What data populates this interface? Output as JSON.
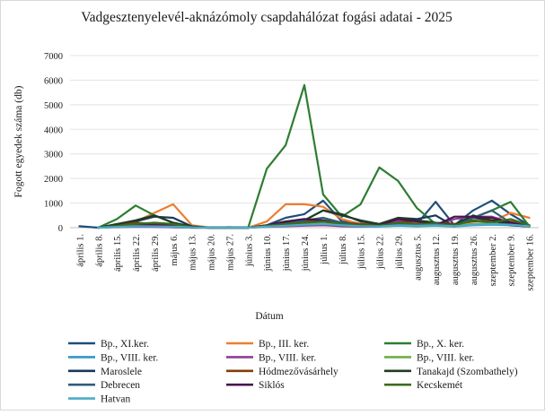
{
  "chart_data": {
    "type": "line",
    "title": "Vadgesztenyelevél-aknázómoly csapdahálózat fogási adatai - 2025",
    "xlabel": "Dátum",
    "ylabel": "Fogott egyedek száma (db)",
    "ylim": [
      0,
      7000
    ],
    "yticks": [
      "0",
      "1000",
      "2000",
      "3000",
      "4000",
      "5000",
      "6000",
      "7000"
    ],
    "categories": [
      "április 1.",
      "április 8.",
      "április 15.",
      "április 22.",
      "április 29.",
      "május 6.",
      "május 13.",
      "május 20.",
      "május 27.",
      "június 3.",
      "június 10.",
      "június 17.",
      "június 24.",
      "július 1.",
      "július 8.",
      "július 15.",
      "július 22.",
      "július 29.",
      "augusztus 5.",
      "augusztus 12.",
      "augusztus 19.",
      "augusztus 26.",
      "szeptember 2.",
      "szeptember 9.",
      "szeptember 16."
    ],
    "grid": true,
    "legend_position": "bottom",
    "series": [
      {
        "name": "Bp., XI.ker.",
        "color": "#1f4e79",
        "values": [
          60,
          0,
          80,
          120,
          180,
          150,
          40,
          0,
          20,
          0,
          100,
          400,
          550,
          1100,
          250,
          150,
          50,
          250,
          150,
          1050,
          100,
          700,
          1100,
          550,
          100
        ]
      },
      {
        "name": "Bp., III. ker.",
        "color": "#ed7d31",
        "values": [
          null,
          0,
          100,
          250,
          600,
          950,
          100,
          0,
          0,
          0,
          250,
          950,
          950,
          850,
          350,
          150,
          100,
          350,
          200,
          150,
          100,
          300,
          250,
          600,
          400
        ]
      },
      {
        "name": "Bp., X. ker.",
        "color": "#2e7d32",
        "values": [
          null,
          0,
          350,
          900,
          500,
          200,
          50,
          0,
          0,
          0,
          2400,
          3350,
          5800,
          1350,
          450,
          950,
          2450,
          1900,
          800,
          150,
          50,
          400,
          700,
          1050,
          50
        ]
      },
      {
        "name": "Bp., VIII. ker.",
        "color": "#2f97c9",
        "values": [
          null,
          0,
          30,
          60,
          40,
          20,
          0,
          0,
          0,
          0,
          50,
          80,
          100,
          150,
          80,
          50,
          50,
          80,
          60,
          80,
          50,
          100,
          120,
          100,
          50
        ]
      },
      {
        "name": "Bp., VIII. ker.",
        "color": "#8e3d97",
        "values": [
          null,
          0,
          20,
          40,
          30,
          20,
          0,
          0,
          0,
          0,
          30,
          60,
          80,
          100,
          60,
          40,
          50,
          300,
          150,
          100,
          350,
          450,
          450,
          200,
          100
        ]
      },
      {
        "name": "Bp., VIII. ker.",
        "color": "#70ad47",
        "values": [
          null,
          0,
          50,
          100,
          80,
          50,
          0,
          0,
          0,
          0,
          50,
          100,
          150,
          200,
          100,
          80,
          100,
          150,
          100,
          120,
          100,
          150,
          200,
          150,
          80
        ]
      },
      {
        "name": "Maroslele",
        "color": "#17375e",
        "values": [
          null,
          0,
          100,
          250,
          450,
          400,
          50,
          0,
          0,
          0,
          80,
          200,
          300,
          700,
          500,
          300,
          150,
          400,
          350,
          500,
          50,
          400,
          300,
          100,
          50
        ]
      },
      {
        "name": "Hódmezővásárhely",
        "color": "#843c0c",
        "values": [
          null,
          0,
          80,
          200,
          150,
          100,
          20,
          0,
          0,
          0,
          50,
          150,
          250,
          300,
          200,
          150,
          100,
          200,
          300,
          200,
          150,
          250,
          300,
          250,
          100
        ]
      },
      {
        "name": "Tanakajd (Szombathely)",
        "color": "#1f3d1f",
        "values": [
          null,
          0,
          150,
          300,
          500,
          200,
          30,
          0,
          0,
          0,
          100,
          250,
          300,
          700,
          550,
          250,
          150,
          400,
          300,
          200,
          100,
          500,
          300,
          150,
          50
        ]
      },
      {
        "name": "Debrecen",
        "color": "#2c5f7c",
        "values": [
          null,
          0,
          50,
          100,
          80,
          60,
          10,
          0,
          0,
          0,
          80,
          150,
          300,
          400,
          200,
          100,
          80,
          150,
          100,
          200,
          50,
          400,
          700,
          200,
          80
        ]
      },
      {
        "name": "Siklós",
        "color": "#4a154b",
        "values": [
          null,
          0,
          60,
          120,
          100,
          80,
          10,
          0,
          0,
          0,
          100,
          250,
          350,
          300,
          100,
          80,
          100,
          350,
          250,
          100,
          450,
          450,
          400,
          200,
          50
        ]
      },
      {
        "name": "Kecskemét",
        "color": "#3b6b1f",
        "values": [
          null,
          0,
          70,
          150,
          200,
          150,
          20,
          0,
          0,
          0,
          80,
          150,
          200,
          250,
          150,
          100,
          80,
          200,
          150,
          150,
          100,
          300,
          200,
          350,
          100
        ]
      },
      {
        "name": "Hatvan",
        "color": "#4bacc6",
        "values": [
          null,
          0,
          30,
          60,
          50,
          40,
          10,
          0,
          0,
          0,
          40,
          80,
          120,
          150,
          100,
          60,
          50,
          100,
          80,
          100,
          60,
          120,
          150,
          120,
          60
        ]
      }
    ]
  }
}
